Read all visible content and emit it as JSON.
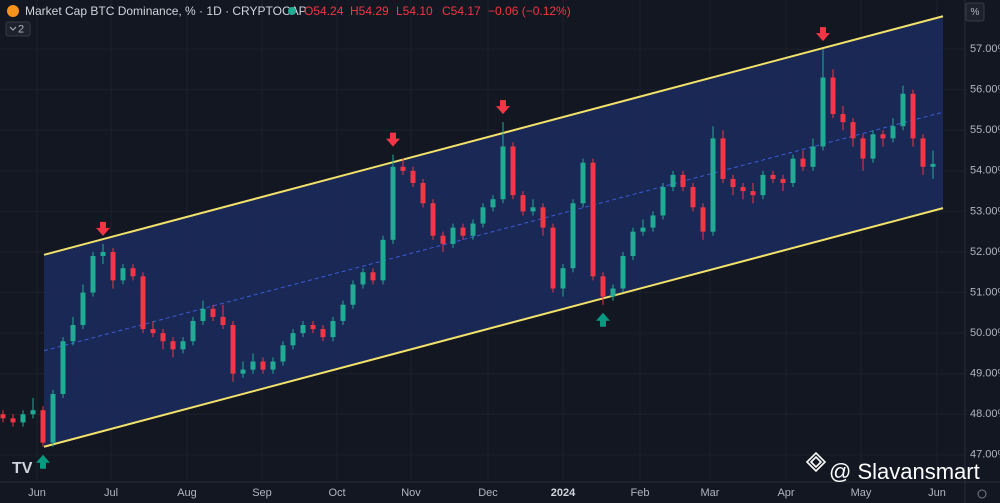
{
  "chart_data": {
    "type": "candlestick",
    "title": "Market Cap BTC Dominance, % · 1D · CRYPTOCAP",
    "ohlc_header": {
      "open": "O54.24",
      "high": "H54.29",
      "low": "L54.10",
      "close": "C54.17",
      "change": "−0.06 (−0.12%)"
    },
    "indicator_count": "2",
    "scale_button": "%",
    "watermark": "@ Slavansmart",
    "up_color": "#22ab94",
    "down_color": "#f23645",
    "channel_color": "#f2e26b",
    "channel_fill": "#1c2b5e",
    "open": [
      48.0,
      47.9,
      47.8,
      48.0,
      48.1,
      47.3,
      48.5,
      49.8,
      50.2,
      51.0,
      51.9,
      52.0,
      51.3,
      51.6,
      51.4,
      50.1,
      50.0,
      49.8,
      49.6,
      49.8,
      50.3,
      50.6,
      50.4,
      50.2,
      49.0,
      49.1,
      49.3,
      49.1,
      49.3,
      49.7,
      50.0,
      50.2,
      50.1,
      49.9,
      50.3,
      50.7,
      51.2,
      51.5,
      51.3,
      52.3,
      54.1,
      54.0,
      53.7,
      53.2,
      52.4,
      52.2,
      52.6,
      52.4,
      52.7,
      53.1,
      53.3,
      54.6,
      53.4,
      53.0,
      53.1,
      52.6,
      51.1,
      51.6,
      53.2,
      54.2,
      51.4,
      50.9,
      51.1,
      51.9,
      52.5,
      52.6,
      52.9,
      53.6,
      53.9,
      53.6,
      53.1,
      52.5,
      54.8,
      53.8,
      53.6,
      53.5,
      53.4,
      53.9,
      53.8,
      53.7,
      54.3,
      54.1,
      54.6,
      56.3,
      55.4,
      55.2,
      54.8,
      54.3,
      54.9,
      54.8,
      55.1,
      55.9,
      54.8,
      54.1
    ],
    "high": [
      48.1,
      48.0,
      48.1,
      48.4,
      48.2,
      48.6,
      49.9,
      50.4,
      51.2,
      52.0,
      52.2,
      52.1,
      51.7,
      51.7,
      51.5,
      50.3,
      50.1,
      49.9,
      49.9,
      50.4,
      50.8,
      50.7,
      50.7,
      50.3,
      49.3,
      49.5,
      49.4,
      49.4,
      49.8,
      50.1,
      50.3,
      50.3,
      50.2,
      50.4,
      50.8,
      51.3,
      51.6,
      51.6,
      52.4,
      54.4,
      54.3,
      54.1,
      53.8,
      53.3,
      52.5,
      52.7,
      52.7,
      52.8,
      53.2,
      53.4,
      55.2,
      54.7,
      53.5,
      53.3,
      53.2,
      52.7,
      51.7,
      53.3,
      54.3,
      54.3,
      51.5,
      51.2,
      52.0,
      52.6,
      52.8,
      53.0,
      53.7,
      54.0,
      54.0,
      53.7,
      53.2,
      55.1,
      55.0,
      53.9,
      53.7,
      53.7,
      54.0,
      54.0,
      53.9,
      54.4,
      54.5,
      54.8,
      57.0,
      56.5,
      55.6,
      55.3,
      54.9,
      55.0,
      55.0,
      55.3,
      56.1,
      56.0,
      54.9,
      54.5
    ],
    "low": [
      47.8,
      47.7,
      47.7,
      47.9,
      47.2,
      47.2,
      48.4,
      49.7,
      50.1,
      50.9,
      51.7,
      51.1,
      51.2,
      51.3,
      50.0,
      49.9,
      49.6,
      49.4,
      49.5,
      49.7,
      50.2,
      50.3,
      50.1,
      48.8,
      48.9,
      49.0,
      49.0,
      49.0,
      49.2,
      49.6,
      49.9,
      50.0,
      49.8,
      49.8,
      50.2,
      50.6,
      51.1,
      51.2,
      51.2,
      52.2,
      53.9,
      53.6,
      53.1,
      52.3,
      52.0,
      52.1,
      52.3,
      52.3,
      52.6,
      53.0,
      53.2,
      53.3,
      52.9,
      52.9,
      52.4,
      51.0,
      50.9,
      51.5,
      53.1,
      51.3,
      50.7,
      50.8,
      51.0,
      51.8,
      52.4,
      52.5,
      52.8,
      53.5,
      53.5,
      53.0,
      52.3,
      52.4,
      53.7,
      53.4,
      53.3,
      53.2,
      53.3,
      53.7,
      53.5,
      53.6,
      54.0,
      54.0,
      54.5,
      55.3,
      55.0,
      54.6,
      54.0,
      54.2,
      54.6,
      54.7,
      55.0,
      54.6,
      53.9,
      53.8
    ],
    "close": [
      47.9,
      47.8,
      48.0,
      48.1,
      47.3,
      48.5,
      49.8,
      50.2,
      51.0,
      51.9,
      52.0,
      51.3,
      51.6,
      51.4,
      50.1,
      50.0,
      49.8,
      49.6,
      49.8,
      50.3,
      50.6,
      50.4,
      50.2,
      49.0,
      49.1,
      49.3,
      49.1,
      49.3,
      49.7,
      50.0,
      50.2,
      50.1,
      49.9,
      50.3,
      50.7,
      51.2,
      51.5,
      51.3,
      52.3,
      54.1,
      54.0,
      53.7,
      53.2,
      52.4,
      52.2,
      52.6,
      52.4,
      52.7,
      53.1,
      53.3,
      54.6,
      53.4,
      53.0,
      53.1,
      52.6,
      51.1,
      51.6,
      53.2,
      54.2,
      51.4,
      50.9,
      51.1,
      51.9,
      52.5,
      52.6,
      52.9,
      53.6,
      53.9,
      53.6,
      53.1,
      52.5,
      54.8,
      53.8,
      53.6,
      53.5,
      53.4,
      53.9,
      53.8,
      53.7,
      54.3,
      54.1,
      54.6,
      56.3,
      55.4,
      55.2,
      54.8,
      54.3,
      54.9,
      54.8,
      55.1,
      55.9,
      54.8,
      54.1,
      54.17
    ],
    "channel": {
      "x": [
        4.1,
        94
      ],
      "upper": [
        51.93,
        57.81
      ],
      "lower": [
        47.2,
        53.08
      ]
    },
    "signals": {
      "tops": [
        10,
        39,
        50,
        82
      ],
      "bottoms": [
        4,
        60
      ]
    },
    "xlim": [
      -0.3,
      96.2
    ],
    "xticks": [
      {
        "value": 3.4,
        "label": "Jun"
      },
      {
        "value": 10.8,
        "label": "Jul"
      },
      {
        "value": 18.4,
        "label": "Aug"
      },
      {
        "value": 25.9,
        "label": "Sep"
      },
      {
        "value": 33.4,
        "label": "Oct"
      },
      {
        "value": 40.8,
        "label": "Nov"
      },
      {
        "value": 48.5,
        "label": "Dec"
      },
      {
        "value": 56,
        "label": "2024"
      },
      {
        "value": 63.7,
        "label": "Feb"
      },
      {
        "value": 70.7,
        "label": "Mar"
      },
      {
        "value": 78.3,
        "label": "Apr"
      },
      {
        "value": 85.8,
        "label": "May"
      },
      {
        "value": 93.4,
        "label": "Jun"
      }
    ],
    "ylim": [
      46.38,
      58.21
    ],
    "yticks": [
      {
        "value": 47,
        "label": "47.00%"
      },
      {
        "value": 48,
        "label": "48.00%"
      },
      {
        "value": 49,
        "label": "49.00%"
      },
      {
        "value": 50,
        "label": "50.00%"
      },
      {
        "value": 51,
        "label": "51.00%"
      },
      {
        "value": 52,
        "label": "52.00%"
      },
      {
        "value": 53,
        "label": "53.00%"
      },
      {
        "value": 54,
        "label": "54.00%"
      },
      {
        "value": 55,
        "label": "55.00%"
      },
      {
        "value": 56,
        "label": "56.00%"
      },
      {
        "value": 57,
        "label": "57.00%"
      }
    ]
  }
}
